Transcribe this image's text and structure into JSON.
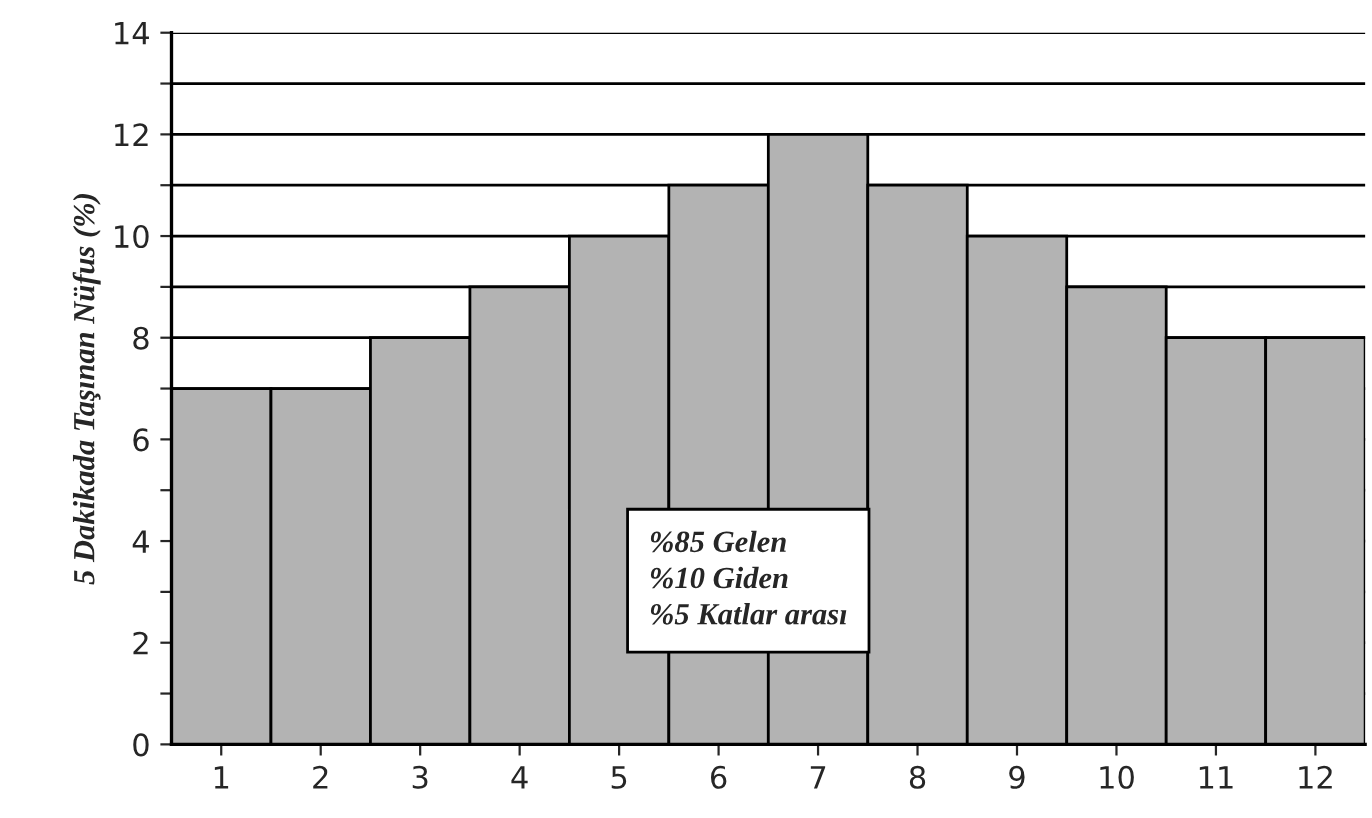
{
  "chart_data": {
    "type": "bar",
    "ylabel": "5 Dakikada Taşınan Nüfus (%)",
    "categories": [
      "1",
      "2",
      "3",
      "4",
      "5",
      "6",
      "7",
      "8",
      "9",
      "10",
      "11",
      "12"
    ],
    "values": [
      7,
      7,
      8,
      9,
      10,
      11,
      12,
      11,
      10,
      9,
      8,
      8
    ],
    "color": "#b3b3b3",
    "ylim": [
      0,
      14
    ],
    "yticks": [
      0,
      {
        "value": 1,
        "label": null
      },
      2,
      {
        "value": 3,
        "label": null
      },
      4,
      {
        "value": 5,
        "label": null
      },
      6,
      {
        "value": 7,
        "label": null
      },
      8,
      {
        "value": 9,
        "label": null
      },
      10,
      {
        "value": 11,
        "label": null
      },
      12,
      {
        "value": 13,
        "label": null
      },
      14
    ],
    "grid": "y",
    "annotations": [
      "%85 Gelen\n%10 Giden\n%5 Katlar arası"
    ]
  }
}
